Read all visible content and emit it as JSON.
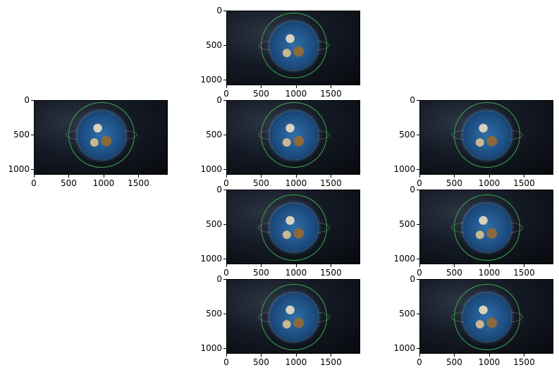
{
  "figure": {
    "panels": [
      {
        "id": "top-center"
      },
      {
        "id": "mid-left"
      },
      {
        "id": "mid-center"
      },
      {
        "id": "mid-right"
      },
      {
        "id": "row3-center"
      },
      {
        "id": "row3-right"
      },
      {
        "id": "row4-center"
      },
      {
        "id": "row4-right"
      }
    ],
    "x_tick_labels": [
      "0",
      "500",
      "1000",
      "1500"
    ],
    "y_tick_labels": [
      "0",
      "500",
      "1000"
    ]
  }
}
